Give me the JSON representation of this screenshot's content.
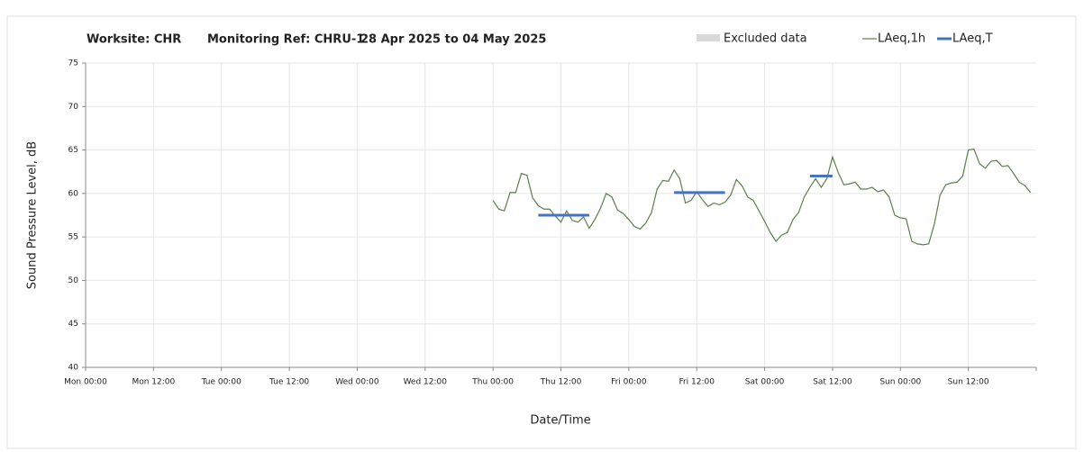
{
  "chart_data": {
    "type": "line",
    "title": "Worksite: CHR",
    "subtitle": "Monitoring Ref: CHRU-1",
    "period": "28 Apr 2025 to 04 May 2025",
    "xlabel": "Date/Time",
    "ylabel": "Sound Pressure Level, dB",
    "excluded": {
      "name": "Excluded data",
      "color": "#d9d9d9"
    },
    "x": [
      72,
      73,
      74,
      75,
      76,
      77,
      78,
      79,
      80,
      81,
      82,
      83,
      84,
      85,
      86,
      87,
      88,
      89,
      90,
      91,
      92,
      93,
      94,
      95,
      96,
      97,
      98,
      99,
      100,
      101,
      102,
      103,
      104,
      105,
      106,
      107,
      108,
      109,
      110,
      111,
      112,
      113,
      114,
      115,
      116,
      117,
      118,
      119,
      120,
      121,
      122,
      123,
      124,
      125,
      126,
      127,
      128,
      129,
      130,
      131,
      132,
      133,
      134,
      135,
      136,
      137,
      138,
      139,
      140,
      141,
      142,
      143,
      144,
      145,
      146,
      147,
      148,
      149,
      150,
      151,
      152,
      153,
      154,
      155,
      156,
      157,
      158,
      159,
      160,
      161,
      162,
      163,
      164,
      165,
      166,
      167
    ],
    "series": [
      {
        "name": "LAeq,1h",
        "color": "#5b7f4a",
        "width": 1.2,
        "values": [
          59.2,
          58.2,
          58.0,
          60.1,
          60.1,
          62.3,
          62.1,
          59.5,
          58.6,
          58.2,
          58.2,
          57.4,
          56.7,
          58.0,
          56.9,
          56.7,
          57.3,
          56.0,
          57.0,
          58.3,
          60.0,
          59.6,
          58.1,
          57.7,
          57.0,
          56.2,
          55.9,
          56.6,
          57.8,
          60.5,
          61.5,
          61.4,
          62.7,
          61.7,
          58.9,
          59.2,
          60.2,
          59.3,
          58.5,
          58.9,
          58.7,
          59.0,
          59.8,
          61.6,
          60.9,
          59.6,
          59.2,
          58.0,
          56.8,
          55.5,
          54.5,
          55.2,
          55.5,
          57.0,
          57.8,
          59.6,
          60.7,
          61.7,
          60.7,
          61.7,
          64.2,
          62.4,
          61.0,
          61.1,
          61.3,
          60.5,
          60.5,
          60.7,
          60.2,
          60.4,
          59.6,
          57.5,
          57.2,
          57.1,
          54.5,
          54.2,
          54.1,
          54.2,
          56.5,
          59.8,
          61.0,
          61.2,
          61.3,
          62.0,
          65.0,
          65.1,
          63.4,
          62.9,
          63.7,
          63.8,
          63.1,
          63.2,
          62.3,
          61.3,
          60.9,
          60.1
        ]
      },
      {
        "name": "LAeq,T",
        "color": "#4472c4",
        "width": 3,
        "values": [
          null,
          null,
          null,
          null,
          null,
          null,
          null,
          null,
          57.5,
          57.5,
          57.5,
          57.5,
          57.5,
          57.5,
          57.5,
          57.5,
          57.5,
          57.5,
          null,
          null,
          null,
          null,
          null,
          null,
          null,
          null,
          null,
          null,
          null,
          null,
          null,
          null,
          60.1,
          60.1,
          60.1,
          60.1,
          60.1,
          60.1,
          60.1,
          60.1,
          60.1,
          60.1,
          null,
          null,
          null,
          null,
          null,
          null,
          null,
          null,
          null,
          null,
          null,
          null,
          null,
          null,
          62.0,
          62.0,
          62.0,
          62.0,
          62.0,
          null,
          null,
          null,
          null,
          null,
          null,
          null,
          null,
          null,
          null,
          null,
          null,
          null,
          null,
          null,
          null,
          null,
          null,
          null,
          null,
          null,
          null,
          null,
          null,
          null,
          null,
          null,
          null,
          null,
          null,
          null,
          null,
          null,
          null,
          null
        ]
      }
    ],
    "xlim": [
      0,
      168
    ],
    "xticks": [
      {
        "value": 0,
        "label": "Mon 00:00"
      },
      {
        "value": 12,
        "label": "Mon 12:00"
      },
      {
        "value": 24,
        "label": "Tue 00:00"
      },
      {
        "value": 36,
        "label": "Tue 12:00"
      },
      {
        "value": 48,
        "label": "Wed 00:00"
      },
      {
        "value": 60,
        "label": "Wed 12:00"
      },
      {
        "value": 72,
        "label": "Thu 00:00"
      },
      {
        "value": 84,
        "label": "Thu 12:00"
      },
      {
        "value": 96,
        "label": "Fri 00:00"
      },
      {
        "value": 108,
        "label": "Fri 12:00"
      },
      {
        "value": 120,
        "label": "Sat 00:00"
      },
      {
        "value": 132,
        "label": "Sat 12:00"
      },
      {
        "value": 144,
        "label": "Sun 00:00"
      },
      {
        "value": 156,
        "label": "Sun 12:00"
      }
    ],
    "ylim": [
      40,
      75
    ],
    "yticks": [
      40,
      45,
      50,
      55,
      60,
      65,
      70,
      75
    ],
    "grid": true
  }
}
